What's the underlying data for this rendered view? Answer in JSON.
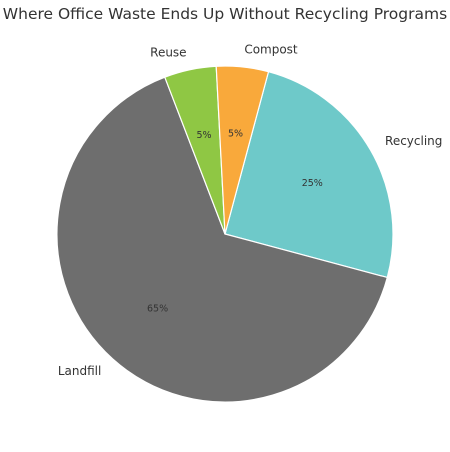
{
  "chart_data": {
    "type": "pie",
    "title": "Where Office Waste Ends Up Without Recycling Programs",
    "slices": [
      {
        "label": "Recycling",
        "value": 25,
        "pct_label": "25%",
        "color": "#6ec9c9"
      },
      {
        "label": "Landfill",
        "value": 65,
        "pct_label": "65%",
        "color": "#6e6e6e"
      },
      {
        "label": "Reuse",
        "value": 5,
        "pct_label": "5%",
        "color": "#8fc744"
      },
      {
        "label": "Compost",
        "value": 5,
        "pct_label": "5%",
        "color": "#f9a93b"
      }
    ],
    "start_angle_deg": 75,
    "direction": "clockwise",
    "legend": "none"
  }
}
